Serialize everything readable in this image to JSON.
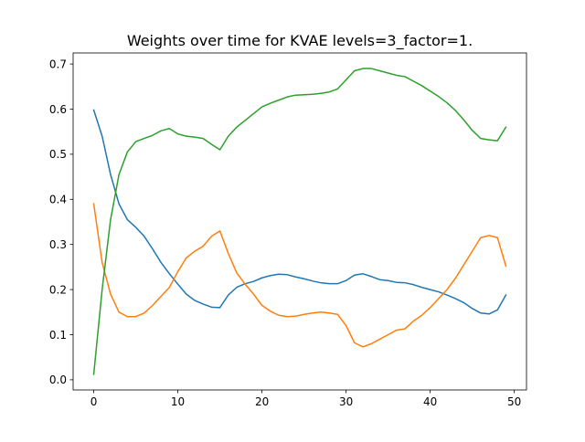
{
  "chart_data": {
    "type": "line",
    "title": "Weights over time for KVAE levels=3_factor=1.",
    "xlabel": "",
    "ylabel": "",
    "xlim": [
      -2.45,
      51.45
    ],
    "ylim": [
      -0.0225,
      0.7245
    ],
    "xticks": [
      0,
      10,
      20,
      30,
      40,
      50
    ],
    "xtick_labels": [
      "0",
      "10",
      "20",
      "30",
      "40",
      "50"
    ],
    "yticks": [
      0.0,
      0.1,
      0.2,
      0.3,
      0.4,
      0.5,
      0.6,
      0.7
    ],
    "ytick_labels": [
      "0.0",
      "0.1",
      "0.2",
      "0.3",
      "0.4",
      "0.5",
      "0.6",
      "0.7"
    ],
    "grid": false,
    "legend": "none",
    "x": [
      0,
      1,
      2,
      3,
      4,
      5,
      6,
      7,
      8,
      9,
      10,
      11,
      12,
      13,
      14,
      15,
      16,
      17,
      18,
      19,
      20,
      21,
      22,
      23,
      24,
      25,
      26,
      27,
      28,
      29,
      30,
      31,
      32,
      33,
      34,
      35,
      36,
      37,
      38,
      39,
      40,
      41,
      42,
      43,
      44,
      45,
      46,
      47,
      48,
      49
    ],
    "series": [
      {
        "color": "#1f77b4",
        "values": [
          0.598,
          0.54,
          0.455,
          0.39,
          0.355,
          0.338,
          0.318,
          0.29,
          0.26,
          0.235,
          0.212,
          0.19,
          0.176,
          0.168,
          0.161,
          0.16,
          0.188,
          0.205,
          0.213,
          0.218,
          0.226,
          0.231,
          0.234,
          0.233,
          0.228,
          0.224,
          0.219,
          0.215,
          0.213,
          0.213,
          0.22,
          0.232,
          0.235,
          0.229,
          0.222,
          0.22,
          0.216,
          0.215,
          0.211,
          0.205,
          0.2,
          0.195,
          0.188,
          0.18,
          0.171,
          0.158,
          0.148,
          0.146,
          0.155,
          0.188
        ]
      },
      {
        "color": "#ff7f0e",
        "values": [
          0.39,
          0.26,
          0.19,
          0.15,
          0.14,
          0.14,
          0.148,
          0.165,
          0.185,
          0.205,
          0.24,
          0.27,
          0.285,
          0.296,
          0.318,
          0.33,
          0.28,
          0.237,
          0.212,
          0.19,
          0.165,
          0.152,
          0.143,
          0.14,
          0.141,
          0.145,
          0.148,
          0.15,
          0.148,
          0.145,
          0.12,
          0.082,
          0.073,
          0.08,
          0.09,
          0.1,
          0.11,
          0.113,
          0.13,
          0.143,
          0.16,
          0.18,
          0.2,
          0.225,
          0.255,
          0.285,
          0.315,
          0.32,
          0.315,
          0.252
        ]
      },
      {
        "color": "#2ca02c",
        "values": [
          0.012,
          0.2,
          0.355,
          0.455,
          0.505,
          0.528,
          0.535,
          0.542,
          0.552,
          0.557,
          0.545,
          0.54,
          0.538,
          0.535,
          0.522,
          0.51,
          0.54,
          0.56,
          0.575,
          0.59,
          0.605,
          0.613,
          0.62,
          0.627,
          0.631,
          0.632,
          0.633,
          0.635,
          0.638,
          0.645,
          0.665,
          0.685,
          0.69,
          0.69,
          0.685,
          0.68,
          0.675,
          0.672,
          0.662,
          0.652,
          0.64,
          0.628,
          0.614,
          0.597,
          0.576,
          0.553,
          0.535,
          0.532,
          0.53,
          0.56
        ]
      }
    ]
  }
}
